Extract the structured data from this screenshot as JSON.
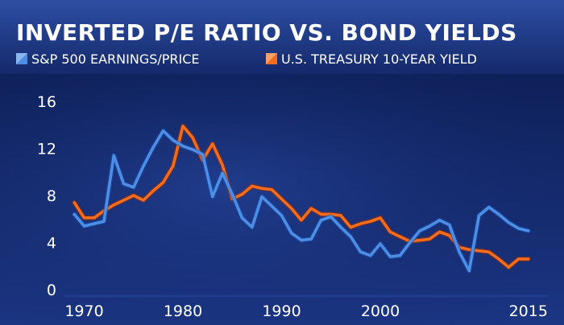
{
  "chart_data": {
    "type": "line",
    "title": "INVERTED P/E RATIO VS. BOND YIELDS",
    "xlabel": "",
    "ylabel": "",
    "xlim": [
      1968,
      2016
    ],
    "ylim": [
      0,
      16
    ],
    "x_ticks": [
      1970,
      1980,
      1990,
      2000,
      2015
    ],
    "y_ticks": [
      0,
      4,
      8,
      12,
      16
    ],
    "grid": false,
    "legend_position": "top-left",
    "series": [
      {
        "name": "S&P 500 EARNINGS/PRICE",
        "color": "#4d8ee6",
        "values": [
          [
            1969,
            6.4
          ],
          [
            1970,
            5.4
          ],
          [
            1971,
            5.6
          ],
          [
            1972,
            5.8
          ],
          [
            1973,
            11.4
          ],
          [
            1974,
            9.0
          ],
          [
            1975,
            8.7
          ],
          [
            1976,
            10.5
          ],
          [
            1977,
            12.1
          ],
          [
            1978,
            13.5
          ],
          [
            1979,
            12.7
          ],
          [
            1980,
            12.2
          ],
          [
            1981,
            11.9
          ],
          [
            1982,
            11.5
          ],
          [
            1983,
            7.9
          ],
          [
            1984,
            9.9
          ],
          [
            1985,
            8.1
          ],
          [
            1986,
            6.1
          ],
          [
            1987,
            5.3
          ],
          [
            1988,
            7.9
          ],
          [
            1989,
            7.1
          ],
          [
            1990,
            6.3
          ],
          [
            1991,
            4.8
          ],
          [
            1992,
            4.2
          ],
          [
            1993,
            4.3
          ],
          [
            1994,
            5.9
          ],
          [
            1995,
            6.2
          ],
          [
            1996,
            5.3
          ],
          [
            1997,
            4.5
          ],
          [
            1998,
            3.2
          ],
          [
            1999,
            2.9
          ],
          [
            2000,
            3.9
          ],
          [
            2001,
            2.8
          ],
          [
            2002,
            2.9
          ],
          [
            2003,
            4.0
          ],
          [
            2004,
            5.0
          ],
          [
            2005,
            5.4
          ],
          [
            2006,
            5.9
          ],
          [
            2007,
            5.5
          ],
          [
            2008,
            3.2
          ],
          [
            2009,
            1.6
          ],
          [
            2010,
            6.3
          ],
          [
            2011,
            7.0
          ],
          [
            2012,
            6.4
          ],
          [
            2013,
            5.7
          ],
          [
            2014,
            5.2
          ],
          [
            2015,
            5.0
          ]
        ]
      },
      {
        "name": "U.S. TREASURY 10-YEAR YIELD",
        "color": "#f26d1c",
        "values": [
          [
            1969,
            7.4
          ],
          [
            1970,
            6.1
          ],
          [
            1971,
            6.1
          ],
          [
            1972,
            6.7
          ],
          [
            1973,
            7.2
          ],
          [
            1974,
            7.6
          ],
          [
            1975,
            8.0
          ],
          [
            1976,
            7.6
          ],
          [
            1977,
            8.4
          ],
          [
            1978,
            9.1
          ],
          [
            1979,
            10.5
          ],
          [
            1980,
            13.9
          ],
          [
            1981,
            12.9
          ],
          [
            1982,
            11.0
          ],
          [
            1983,
            12.4
          ],
          [
            1984,
            10.6
          ],
          [
            1985,
            7.7
          ],
          [
            1986,
            8.1
          ],
          [
            1987,
            8.8
          ],
          [
            1988,
            8.6
          ],
          [
            1989,
            8.5
          ],
          [
            1990,
            7.7
          ],
          [
            1991,
            6.9
          ],
          [
            1992,
            5.9
          ],
          [
            1993,
            6.9
          ],
          [
            1994,
            6.4
          ],
          [
            1995,
            6.4
          ],
          [
            1996,
            6.3
          ],
          [
            1997,
            5.3
          ],
          [
            1998,
            5.6
          ],
          [
            1999,
            5.8
          ],
          [
            2000,
            6.1
          ],
          [
            2001,
            4.9
          ],
          [
            2002,
            4.5
          ],
          [
            2003,
            4.1
          ],
          [
            2004,
            4.2
          ],
          [
            2005,
            4.3
          ],
          [
            2006,
            4.9
          ],
          [
            2007,
            4.6
          ],
          [
            2008,
            3.6
          ],
          [
            2009,
            3.4
          ],
          [
            2010,
            3.3
          ],
          [
            2011,
            3.2
          ],
          [
            2012,
            2.6
          ],
          [
            2013,
            1.9
          ],
          [
            2014,
            2.6
          ],
          [
            2015,
            2.6
          ]
        ]
      }
    ]
  }
}
